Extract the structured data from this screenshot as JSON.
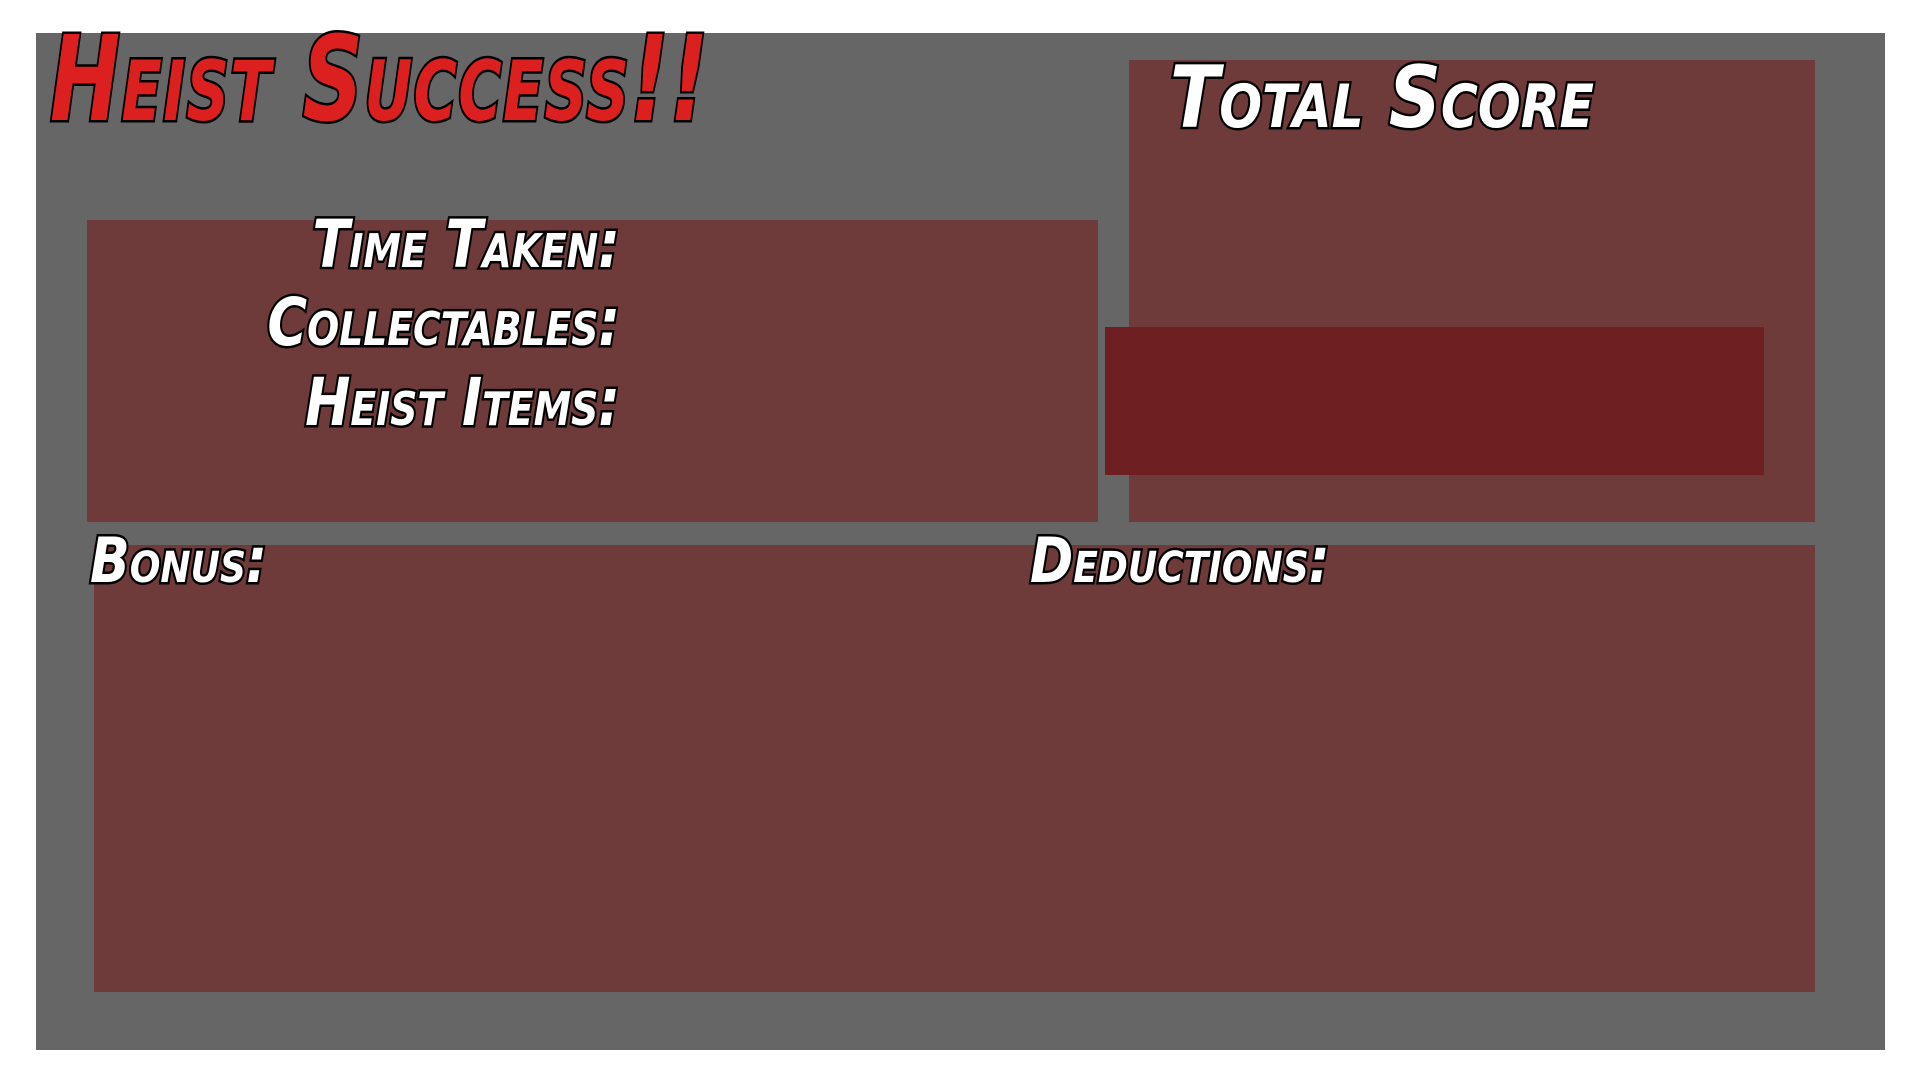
{
  "title": "Heist Success!!",
  "stats": {
    "time_taken_label": "Time Taken:",
    "collectables_label": "Collectables:",
    "heist_items_label": "Heist Items:"
  },
  "score": {
    "total_score_label": "Total Score"
  },
  "summary": {
    "bonus_label": "Bonus:",
    "deductions_label": "Deductions:"
  },
  "colors": {
    "frame": "#666666",
    "panel": "#6e3a3a",
    "score_box": "#6e1f22",
    "title": "#dc1f1f",
    "label_text": "#ffffff",
    "outline": "#000000"
  }
}
